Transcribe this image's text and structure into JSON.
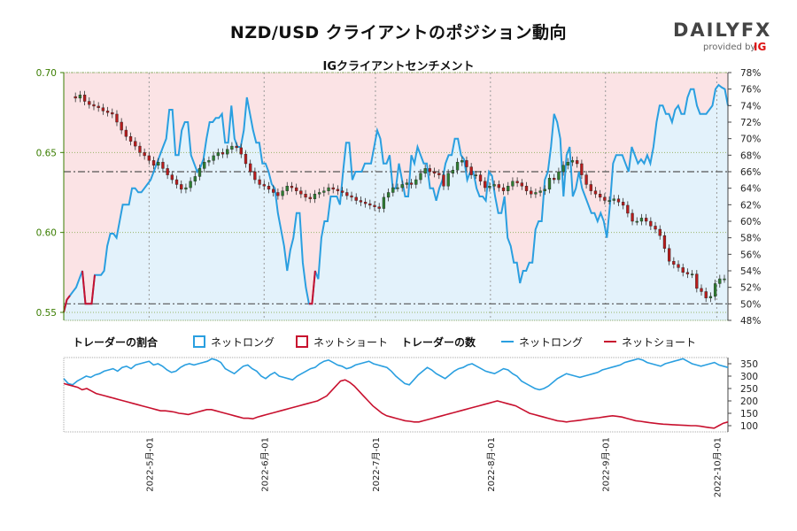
{
  "title": "NZD/USD クライアントのポジション動向",
  "subtitle": "IGクライアントセンチメント",
  "logo": {
    "main": "DAILYFX",
    "provided_by": "provided by",
    "brand": "IG"
  },
  "legend": {
    "ratio_title": "トレーダーの割合",
    "ratio_long": "ネットロング",
    "ratio_short": "ネットショート",
    "count_title": "トレーダーの数",
    "count_long": "ネットロング",
    "count_short": "ネットショート"
  },
  "colors": {
    "long": "#2a9fe0",
    "short": "#c8102e",
    "long_fill": "#e3f2fb",
    "short_fill": "#fbe3e5",
    "candle_up": "#2e7d32",
    "candle_down": "#b71c1c",
    "left_axis": "#3a7d00"
  },
  "chart_data": [
    {
      "type": "line",
      "name": "price-and-sentiment",
      "left_axis": {
        "ylim": [
          0.545,
          0.7
        ],
        "ticks": [
          "0.55",
          "0.60",
          "0.65",
          "0.70"
        ]
      },
      "right_axis": {
        "ylim": [
          48,
          78
        ],
        "ticks": [
          "48%",
          "50%",
          "52%",
          "54%",
          "56%",
          "58%",
          "60%",
          "62%",
          "64%",
          "66%",
          "68%",
          "70%",
          "72%",
          "74%",
          "76%",
          "78%"
        ]
      },
      "reference_levels_pct": [
        50,
        66
      ],
      "x_ticks": [
        "2022-5月-01",
        "2022-6月-01",
        "2022-7月-01",
        "2022-8月-01",
        "2022-9月-01",
        "2022-10月-01"
      ],
      "x_range": [
        "2022-04-08",
        "2022-10-04"
      ],
      "net_long_pct": [
        49,
        50.5,
        51,
        51.5,
        52,
        53,
        54,
        50,
        50,
        50,
        53.5,
        53.5,
        53.5,
        54,
        57,
        58.5,
        58.5,
        58,
        60,
        62,
        62,
        62,
        64,
        64,
        63.5,
        63.5,
        64,
        64.5,
        65,
        66,
        67,
        68,
        69,
        70,
        73.5,
        73.5,
        68,
        68,
        71,
        72,
        72,
        68,
        67,
        66,
        66.5,
        67.5,
        70,
        72,
        72,
        72.5,
        72.5,
        73,
        69.5,
        69.5,
        74,
        70,
        69,
        69,
        71,
        75,
        73,
        71,
        69.5,
        69.5,
        67,
        67,
        66,
        64.5,
        64,
        61,
        59,
        57,
        54,
        56.5,
        58,
        61,
        61,
        55,
        52,
        50,
        50,
        54,
        53,
        58,
        60,
        60,
        63,
        63,
        63,
        62,
        66,
        69.5,
        69.5,
        65,
        66,
        66,
        66,
        67,
        67,
        67,
        69,
        71,
        70,
        67,
        67,
        68,
        64,
        64,
        67,
        65,
        63,
        63,
        68,
        67,
        69,
        68,
        67,
        67,
        64,
        64,
        62.5,
        64,
        65,
        67,
        68,
        68,
        70,
        70,
        68,
        67.5,
        65,
        66,
        66,
        64,
        63,
        63,
        62.5,
        66,
        65.5,
        63,
        61,
        61,
        63,
        58,
        57,
        55,
        55,
        52.5,
        54,
        54,
        55,
        55,
        59,
        60,
        60,
        65,
        66,
        69,
        73,
        72,
        70,
        63,
        68,
        69,
        63,
        64,
        66,
        64,
        63,
        62,
        61,
        61,
        60,
        61,
        60,
        58,
        62,
        67,
        68,
        68,
        68,
        67,
        66,
        69,
        68,
        67,
        67.5,
        67,
        68,
        67,
        69,
        72,
        74,
        74,
        73,
        73,
        72,
        73.5,
        74,
        73,
        73,
        75,
        76,
        76,
        74,
        73,
        73,
        73,
        73.5,
        74,
        76,
        76.5,
        76.2,
        76,
        74
      ],
      "nzdusd_close_approx": [
        0.685,
        0.684,
        0.686,
        0.682,
        0.68,
        0.679,
        0.678,
        0.676,
        0.675,
        0.674,
        0.669,
        0.664,
        0.66,
        0.657,
        0.654,
        0.65,
        0.648,
        0.645,
        0.642,
        0.644,
        0.64,
        0.636,
        0.633,
        0.63,
        0.627,
        0.628,
        0.632,
        0.635,
        0.64,
        0.644,
        0.645,
        0.648,
        0.65,
        0.649,
        0.652,
        0.654,
        0.653,
        0.649,
        0.643,
        0.638,
        0.633,
        0.63,
        0.629,
        0.627,
        0.625,
        0.623,
        0.626,
        0.629,
        0.628,
        0.626,
        0.624,
        0.622,
        0.621,
        0.624,
        0.625,
        0.626,
        0.628,
        0.627,
        0.626,
        0.625,
        0.623,
        0.622,
        0.62,
        0.619,
        0.618,
        0.617,
        0.616,
        0.615,
        0.622,
        0.625,
        0.628,
        0.628,
        0.63,
        0.631,
        0.63,
        0.633,
        0.637,
        0.64,
        0.638,
        0.637,
        0.636,
        0.629,
        0.637,
        0.639,
        0.644,
        0.645,
        0.641,
        0.636,
        0.636,
        0.632,
        0.628,
        0.629,
        0.63,
        0.628,
        0.626,
        0.629,
        0.632,
        0.631,
        0.629,
        0.626,
        0.624,
        0.625,
        0.626,
        0.627,
        0.634,
        0.633,
        0.638,
        0.642,
        0.644,
        0.645,
        0.643,
        0.636,
        0.63,
        0.626,
        0.624,
        0.622,
        0.62,
        0.62,
        0.621,
        0.619,
        0.617,
        0.612,
        0.607,
        0.607,
        0.609,
        0.607,
        0.604,
        0.602,
        0.598,
        0.59,
        0.582,
        0.58,
        0.578,
        0.575,
        0.574,
        0.574,
        0.565,
        0.563,
        0.559,
        0.56,
        0.568,
        0.571,
        0.571
      ],
      "y_unit": "price / %"
    },
    {
      "type": "line",
      "name": "trader-counts",
      "ylim": [
        75,
        375
      ],
      "y_ticks": [
        "100",
        "150",
        "200",
        "250",
        "300",
        "350"
      ],
      "net_long_count": [
        290,
        270,
        265,
        280,
        290,
        300,
        295,
        305,
        310,
        320,
        325,
        330,
        320,
        335,
        340,
        330,
        345,
        350,
        355,
        360,
        345,
        350,
        340,
        325,
        315,
        320,
        335,
        345,
        350,
        345,
        350,
        355,
        360,
        370,
        365,
        355,
        330,
        320,
        310,
        325,
        340,
        345,
        330,
        320,
        300,
        290,
        305,
        315,
        300,
        295,
        290,
        285,
        300,
        310,
        320,
        330,
        335,
        350,
        360,
        365,
        355,
        345,
        340,
        330,
        335,
        345,
        350,
        355,
        360,
        350,
        345,
        340,
        335,
        320,
        300,
        285,
        270,
        265,
        285,
        305,
        320,
        335,
        325,
        310,
        300,
        290,
        305,
        320,
        330,
        335,
        345,
        350,
        340,
        330,
        320,
        315,
        310,
        320,
        330,
        325,
        310,
        300,
        280,
        270,
        260,
        250,
        245,
        250,
        260,
        275,
        290,
        300,
        310,
        305,
        300,
        295,
        300,
        305,
        310,
        315,
        325,
        330,
        335,
        340,
        345,
        355,
        360,
        365,
        370,
        365,
        355,
        350,
        345,
        340,
        350,
        355,
        360,
        365,
        370,
        360,
        350,
        345,
        340,
        345,
        350,
        355,
        345,
        340,
        335
      ],
      "net_short_count": [
        270,
        265,
        260,
        255,
        245,
        250,
        240,
        230,
        225,
        220,
        215,
        210,
        205,
        200,
        195,
        190,
        185,
        180,
        175,
        170,
        165,
        160,
        160,
        158,
        155,
        150,
        148,
        145,
        150,
        155,
        160,
        165,
        165,
        160,
        155,
        150,
        145,
        140,
        135,
        130,
        130,
        128,
        135,
        140,
        145,
        150,
        155,
        160,
        165,
        170,
        175,
        180,
        185,
        190,
        195,
        200,
        210,
        220,
        240,
        260,
        280,
        285,
        275,
        260,
        240,
        220,
        200,
        180,
        165,
        150,
        140,
        135,
        130,
        125,
        120,
        118,
        115,
        115,
        120,
        125,
        130,
        135,
        140,
        145,
        150,
        155,
        160,
        165,
        170,
        175,
        180,
        185,
        190,
        195,
        200,
        195,
        190,
        185,
        180,
        170,
        160,
        150,
        145,
        140,
        135,
        130,
        125,
        120,
        118,
        115,
        118,
        120,
        122,
        125,
        128,
        130,
        132,
        135,
        138,
        140,
        138,
        135,
        130,
        125,
        120,
        118,
        115,
        112,
        110,
        108,
        106,
        105,
        104,
        103,
        102,
        101,
        100,
        100,
        98,
        95,
        92,
        90,
        100,
        110,
        115
      ]
    }
  ]
}
